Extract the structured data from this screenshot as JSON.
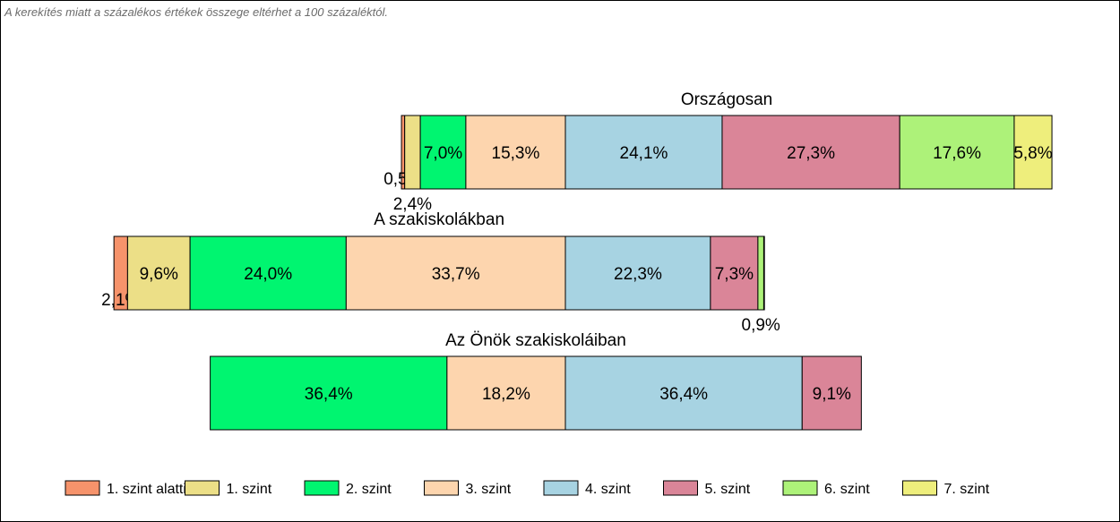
{
  "note": "A kerekítés miatt a  százalékos értékek összege eltérhet a 100 százaléktól.",
  "chart_data": {
    "type": "bar",
    "orientation": "horizontal",
    "stacked": true,
    "legend_position": "bottom",
    "categories": [
      "Országosan",
      "A szakiskolákban",
      "Az Önök szakiskoláiban"
    ],
    "series": [
      {
        "name": "1. szint alatti",
        "color": "#f6936b",
        "values": [
          0.5,
          2.1,
          0
        ],
        "labels": [
          "0,5%",
          "2,1%",
          ""
        ]
      },
      {
        "name": "1. szint",
        "color": "#ecdf87",
        "values": [
          2.4,
          9.6,
          0
        ],
        "labels": [
          "2,4%",
          "9,6%",
          ""
        ]
      },
      {
        "name": "2. szint",
        "color": "#00f570",
        "values": [
          7.0,
          24.0,
          36.4
        ],
        "labels": [
          "7,0%",
          "24,0%",
          "36,4%"
        ]
      },
      {
        "name": "3. szint",
        "color": "#fdd5ae",
        "values": [
          15.3,
          33.7,
          18.2
        ],
        "labels": [
          "15,3%",
          "33,7%",
          "18,2%"
        ]
      },
      {
        "name": "4. szint",
        "color": "#a7d3e2",
        "values": [
          24.1,
          22.3,
          36.4
        ],
        "labels": [
          "24,1%",
          "22,3%",
          "36,4%"
        ]
      },
      {
        "name": "5. szint",
        "color": "#da8598",
        "values": [
          27.3,
          7.3,
          9.1
        ],
        "labels": [
          "27,3%",
          "7,3%",
          "9,1%"
        ]
      },
      {
        "name": "6. szint",
        "color": "#adf279",
        "values": [
          17.6,
          0.9,
          0
        ],
        "labels": [
          "17,6%",
          "0,9%",
          ""
        ]
      },
      {
        "name": "7. szint",
        "color": "#eeee7c",
        "values": [
          5.8,
          0.1,
          0
        ],
        "labels": [
          "5,8%",
          "",
          ""
        ]
      }
    ]
  }
}
